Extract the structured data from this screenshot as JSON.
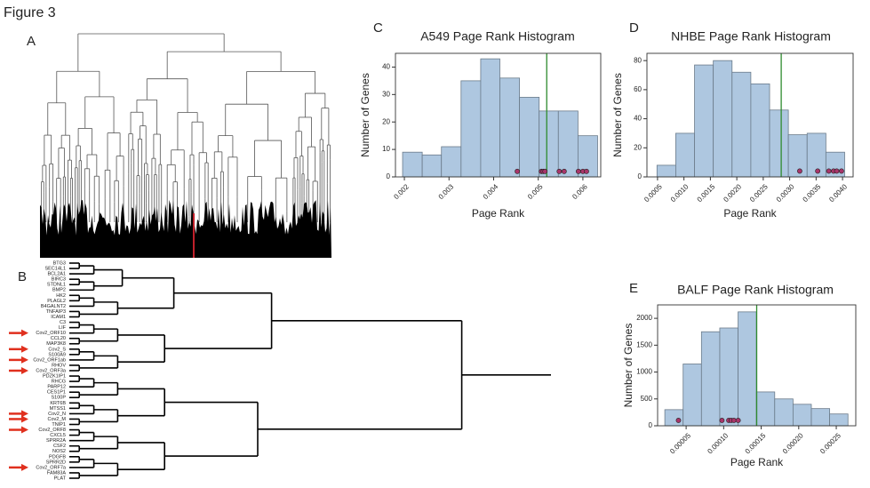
{
  "figure": {
    "title": "Figure 3",
    "panels": [
      "A",
      "B",
      "C",
      "D",
      "E"
    ]
  },
  "gene_dendrogram": {
    "labels": [
      "BTG3",
      "SEC14L1",
      "BCL2A1",
      "BIRC3",
      "STDNL1",
      "BMP2",
      "HK2",
      "PLAGL2",
      "B4GALNT2",
      "TNFAIP3",
      "ICAM1",
      "C3",
      "LIF",
      "Cov2_ORF10",
      "CCL20",
      "MAP3K8",
      "Cov2_S",
      "S100A9",
      "Cov2_ORF1ab",
      "RHOV",
      "Cov2_ORF3a",
      "PDZK1IP1",
      "RHCG",
      "PARP12",
      "CES1P1",
      "S100P",
      "KRT6B",
      "MTSS1",
      "Cov2_N",
      "Cov2_M",
      "TNIP1",
      "Cov2_ORF8",
      "CXCL5",
      "SPRR2A",
      "CSF2",
      "NOS2",
      "PDGFB",
      "SPRR2D",
      "Cov2_ORF7a",
      "FAM83A",
      "PLAT"
    ]
  },
  "chart_data": [
    {
      "type": "histogram",
      "title": "A549 Page Rank Histogram",
      "x_label": "Page Rank",
      "y_label": "Number of Genes",
      "bins": [
        0.00196,
        0.0024,
        0.00283,
        0.00327,
        0.00371,
        0.00414,
        0.00458,
        0.00502,
        0.00545,
        0.00589,
        0.00633
      ],
      "counts": [
        9,
        8,
        11,
        35,
        43,
        36,
        29,
        24,
        24,
        15
      ],
      "color": "#aec7e0",
      "xlim": [
        0.0018,
        0.0064
      ],
      "xticks": [
        0.002,
        0.003,
        0.004,
        0.005,
        0.006
      ],
      "ylim": [
        0,
        45
      ],
      "yticks": [
        0,
        10,
        20,
        30,
        40
      ],
      "markers": {
        "x": [
          0.00453,
          0.00507,
          0.00511,
          0.00515,
          0.00547,
          0.00558,
          0.0059,
          0.006,
          0.00608
        ],
        "y": [
          2,
          2,
          2,
          2,
          2,
          2,
          2,
          2,
          2
        ],
        "color": "#a8356a"
      },
      "vline": {
        "x": 0.00519,
        "color": "#2e8b2e"
      }
    },
    {
      "type": "histogram",
      "title": "NHBE Page Rank Histogram",
      "x_label": "Page Rank",
      "y_label": "Number of Genes",
      "bins": [
        0.00049,
        0.000845,
        0.0012,
        0.001555,
        0.00191,
        0.002265,
        0.00262,
        0.002975,
        0.00333,
        0.003685,
        0.00404
      ],
      "counts": [
        8,
        30,
        77,
        80,
        72,
        64,
        46,
        29,
        30,
        17
      ],
      "color": "#aec7e0",
      "xlim": [
        0.0003,
        0.0042
      ],
      "xticks": [
        0.0005,
        {
          "value": 0.001,
          "label": "0.0010"
        },
        0.0015,
        {
          "value": 0.002,
          "label": "0.0020"
        },
        0.0025,
        {
          "value": 0.003,
          "label": "0.0030"
        },
        0.0035,
        {
          "value": 0.004,
          "label": "0.0040"
        }
      ],
      "ylim": [
        0,
        85
      ],
      "yticks": [
        0,
        20,
        40,
        60,
        80
      ],
      "markers": {
        "x": [
          0.00319,
          0.00353,
          0.00374,
          0.00383,
          0.00389,
          0.00398
        ],
        "y": [
          4,
          4,
          4,
          4,
          4,
          4
        ],
        "color": "#a8356a"
      },
      "vline": {
        "x": 0.00284,
        "color": "#2e8b2e"
      }
    },
    {
      "type": "histogram",
      "title": "BALF Page Rank Histogram",
      "x_label": "Page Rank",
      "y_label": "Number of Genes",
      "bins": [
        2.16e-05,
        4.6e-05,
        7.04e-05,
        9.48e-05,
        0.0001192,
        0.0001436,
        0.000168,
        0.0001924,
        0.0002168,
        0.0002412,
        0.0002656
      ],
      "counts": [
        300,
        1150,
        1750,
        1820,
        2120,
        630,
        500,
        400,
        320,
        220
      ],
      "color": "#aec7e0",
      "xlim": [
        1.2e-05,
        0.000276
      ],
      "xticks": [
        5e-05,
        {
          "value": 0.0001,
          "label": "0.00010"
        },
        0.00015,
        {
          "value": 0.0002,
          "label": "0.00020"
        },
        0.00025
      ],
      "ylim": [
        0,
        2250
      ],
      "yticks": [
        0,
        500,
        1000,
        1500,
        2000
      ],
      "markers": {
        "x": [
          3.98e-05,
          9.77e-05,
          0.0001068,
          0.00011,
          0.0001136,
          0.0001193
        ],
        "y": [
          100,
          100,
          100,
          100,
          100,
          100
        ],
        "color": "#a8356a"
      },
      "vline": {
        "x": 0.000144,
        "color": "#2e8b2e"
      }
    }
  ]
}
